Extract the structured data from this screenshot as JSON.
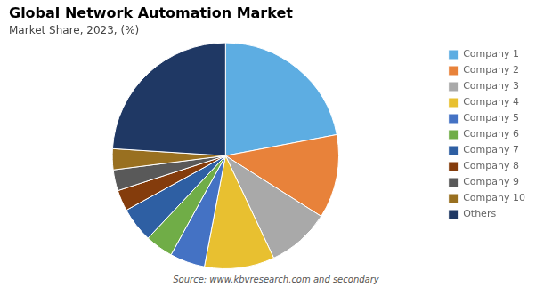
{
  "chart_data": {
    "type": "pie",
    "title": "Global Network Automation Market",
    "subtitle": "Market Share, 2023, (%)",
    "source": "Source: www.kbvresearch.com and secondary",
    "categories": [
      "Company 1",
      "Company 2",
      "Company 3",
      "Company 4",
      "Company 5",
      "Company 6",
      "Company 7",
      "Company 8",
      "Company 9",
      "Company 10",
      "Others"
    ],
    "values": [
      22,
      12,
      9,
      10,
      5,
      4,
      5,
      3,
      3,
      3,
      24
    ],
    "colors": [
      "#5DADE2",
      "#E8823A",
      "#A9A9A9",
      "#E8C030",
      "#4472C4",
      "#70AD47",
      "#2E5FA3",
      "#843C0C",
      "#595959",
      "#997020",
      "#1F3864"
    ],
    "legend": "right"
  }
}
